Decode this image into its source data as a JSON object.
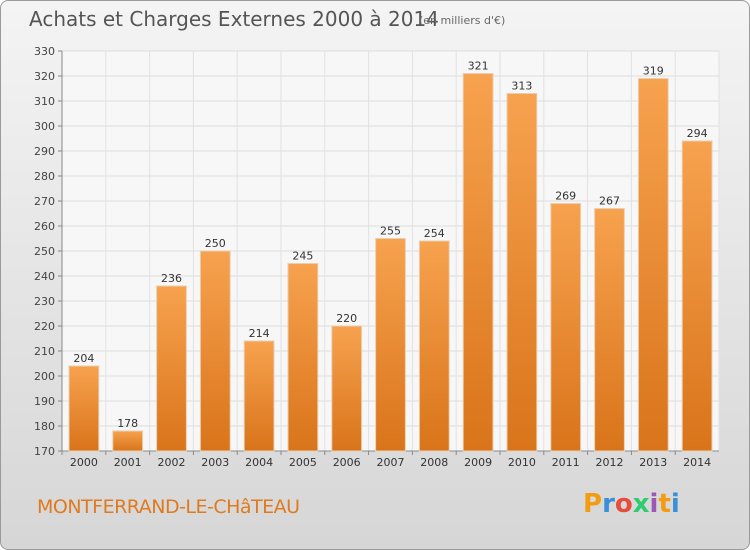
{
  "title": "Achats et Charges Externes 2000 à 2014",
  "subtitle": "(en milliers d'€)",
  "place": "MONTFERRAND-LE-CHâTEAU",
  "logo": {
    "text": "Proxiti",
    "colors": [
      "#f39c12",
      "#3a8fd8",
      "#e74c3c",
      "#2ecc71",
      "#9b59b6",
      "#f39c12",
      "#3a8fd8"
    ]
  },
  "chart_data": {
    "type": "bar",
    "title": "Achats et Charges Externes 2000 à 2014",
    "subtitle": "(en milliers d'€)",
    "categories": [
      "2000",
      "2001",
      "2002",
      "2003",
      "2004",
      "2005",
      "2006",
      "2007",
      "2008",
      "2009",
      "2010",
      "2011",
      "2012",
      "2013",
      "2014"
    ],
    "values": [
      204,
      178,
      236,
      250,
      214,
      245,
      220,
      255,
      254,
      321,
      313,
      269,
      267,
      319,
      294
    ],
    "ylim": [
      170,
      330
    ],
    "yticks": [
      170,
      180,
      190,
      200,
      210,
      220,
      230,
      240,
      250,
      260,
      270,
      280,
      290,
      300,
      310,
      320,
      330
    ],
    "grid": true,
    "bar_color": "#f0922e"
  }
}
